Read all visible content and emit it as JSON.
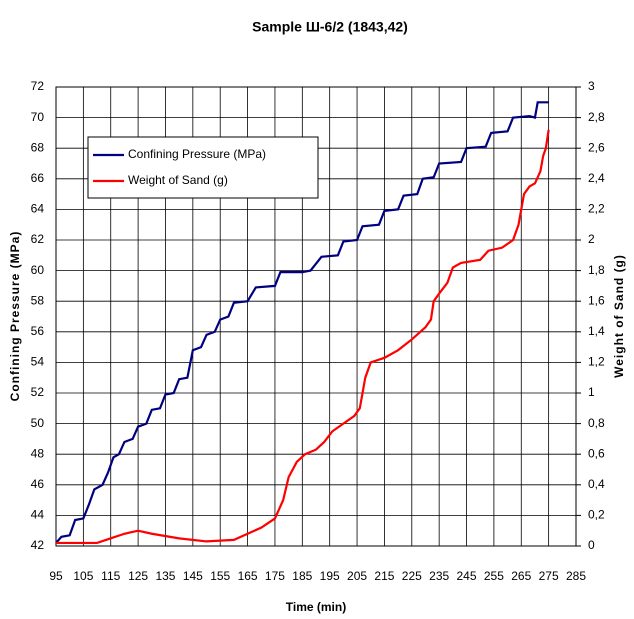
{
  "chart_data": {
    "type": "line",
    "title": "Sample Ш-6/2 (1843,42)",
    "x_label": "Time (min)",
    "y_label": "Confining Pressure (MPa)",
    "y2_label": "Weight of Sand (g)",
    "xlim": [
      95,
      285
    ],
    "xticks": [
      95,
      105,
      115,
      125,
      135,
      145,
      155,
      165,
      175,
      185,
      195,
      205,
      215,
      225,
      235,
      245,
      255,
      265,
      275,
      285
    ],
    "ylim": [
      42,
      72
    ],
    "yticks": [
      42,
      44,
      46,
      48,
      50,
      52,
      54,
      56,
      58,
      60,
      62,
      64,
      66,
      68,
      70,
      72
    ],
    "y2lim": [
      0,
      3
    ],
    "y2ticks": [
      0,
      {
        "value": 0.2,
        "label": "0,2"
      },
      {
        "value": 0.4,
        "label": "0,4"
      },
      {
        "value": 0.6,
        "label": "0,6"
      },
      {
        "value": 0.8,
        "label": "0,8"
      },
      1,
      {
        "value": 1.2,
        "label": "1,2"
      },
      {
        "value": 1.4,
        "label": "1,4"
      },
      {
        "value": 1.6,
        "label": "1,6"
      },
      {
        "value": 1.8,
        "label": "1,8"
      },
      2,
      {
        "value": 2.2,
        "label": "2,2"
      },
      {
        "value": 2.4,
        "label": "2,4"
      },
      {
        "value": 2.6,
        "label": "2,6"
      },
      {
        "value": 2.8,
        "label": "2,8"
      },
      3
    ],
    "grid": true,
    "legend": "upper left",
    "series": [
      {
        "name": "Confining Pressure (MPa)",
        "color": "#000080",
        "x": [
          95,
          97,
          100,
          102,
          105,
          107,
          109,
          112,
          114,
          116,
          118,
          120,
          123,
          125,
          128,
          130,
          133,
          135,
          138,
          140,
          143,
          145,
          148,
          150,
          153,
          155,
          158,
          160,
          165,
          168,
          175,
          177,
          185,
          188,
          192,
          198,
          200,
          205,
          207,
          213,
          215,
          220,
          222,
          227,
          229,
          233,
          235,
          243,
          245,
          252,
          254,
          260,
          262,
          268,
          270,
          271,
          275
        ],
        "values": [
          42.2,
          42.6,
          42.7,
          43.7,
          43.8,
          44.7,
          45.7,
          46,
          46.8,
          47.8,
          48,
          48.8,
          49,
          49.8,
          50,
          50.9,
          51,
          51.9,
          52,
          52.9,
          53,
          54.8,
          55,
          55.8,
          56,
          56.8,
          57,
          57.9,
          58,
          58.9,
          59,
          59.9,
          59.9,
          60,
          60.9,
          61,
          61.9,
          62,
          62.9,
          63,
          63.9,
          64,
          64.9,
          65,
          66,
          66.1,
          67,
          67.1,
          68,
          68.1,
          69,
          69.1,
          70,
          70.1,
          70,
          71,
          71
        ]
      },
      {
        "name": "Weight of Sand (g)",
        "color": "#ff0000",
        "axis": "y2",
        "x": [
          95,
          110,
          115,
          120,
          125,
          130,
          140,
          150,
          160,
          165,
          170,
          175,
          178,
          180,
          183,
          186,
          190,
          193,
          196,
          200,
          204,
          206,
          208,
          210,
          215,
          220,
          225,
          230,
          232,
          233,
          235,
          238,
          240,
          243,
          250,
          253,
          258,
          262,
          264,
          266,
          268,
          270,
          272,
          273,
          274,
          275
        ],
        "values": [
          0.02,
          0.02,
          0.05,
          0.08,
          0.1,
          0.08,
          0.05,
          0.03,
          0.04,
          0.08,
          0.12,
          0.18,
          0.3,
          0.45,
          0.55,
          0.6,
          0.63,
          0.68,
          0.75,
          0.8,
          0.85,
          0.9,
          1.1,
          1.2,
          1.23,
          1.28,
          1.35,
          1.43,
          1.48,
          1.6,
          1.65,
          1.72,
          1.82,
          1.85,
          1.87,
          1.93,
          1.95,
          2.0,
          2.1,
          2.3,
          2.35,
          2.37,
          2.45,
          2.55,
          2.6,
          2.72
        ]
      }
    ]
  }
}
